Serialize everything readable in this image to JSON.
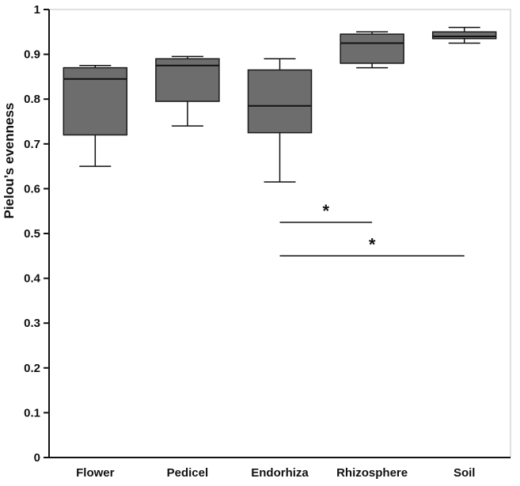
{
  "chart_data": {
    "type": "boxplot",
    "title": "",
    "ylabel": "Pielou’s evenness",
    "xlabel": "",
    "ylim": [
      0,
      1
    ],
    "ytick_step": 0.1,
    "yticks": [
      "0",
      "0.1",
      "0.2",
      "0.3",
      "0.4",
      "0.5",
      "0.6",
      "0.7",
      "0.8",
      "0.9",
      "1"
    ],
    "categories": [
      "Flower",
      "Pedicel",
      "Endorhiza",
      "Rhizosphere",
      "Soil"
    ],
    "series": [
      {
        "name": "Flower",
        "whisker_low": 0.65,
        "q1": 0.72,
        "median": 0.845,
        "q3": 0.87,
        "whisker_high": 0.875
      },
      {
        "name": "Pedicel",
        "whisker_low": 0.74,
        "q1": 0.795,
        "median": 0.875,
        "q3": 0.89,
        "whisker_high": 0.895
      },
      {
        "name": "Endorhiza",
        "whisker_low": 0.615,
        "q1": 0.725,
        "median": 0.785,
        "q3": 0.865,
        "whisker_high": 0.89
      },
      {
        "name": "Rhizosphere",
        "whisker_low": 0.87,
        "q1": 0.88,
        "median": 0.925,
        "q3": 0.945,
        "whisker_high": 0.95
      },
      {
        "name": "Soil",
        "whisker_low": 0.925,
        "q1": 0.935,
        "median": 0.94,
        "q3": 0.95,
        "whisker_high": 0.96
      }
    ],
    "annotations": [
      {
        "type": "significance",
        "from": "Endorhiza",
        "to": "Rhizosphere",
        "y": 0.525,
        "label": "*"
      },
      {
        "type": "significance",
        "from": "Endorhiza",
        "to": "Soil",
        "y": 0.45,
        "label": "*"
      }
    ],
    "box_fill": "#6d6d6d",
    "box_stroke": "#1a1a1a",
    "legend": "none",
    "grid": "off"
  }
}
